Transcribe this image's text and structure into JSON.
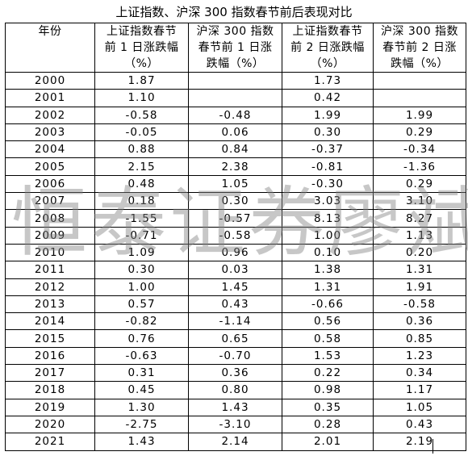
{
  "title": "上证指数、沪深 300 指数春节前后表现对比",
  "headers": [
    [
      "年份"
    ],
    [
      "上证指数春节",
      "前 1 日涨跌幅",
      "（%）"
    ],
    [
      "沪深 300 指数",
      "春节前 1 日涨",
      "跌幅（%）"
    ],
    [
      "上证指数春节",
      "前 2 日涨跌幅",
      "（%）"
    ],
    [
      "沪深 300 指数",
      "春节前 2 日涨",
      "跌幅（%）"
    ]
  ],
  "rows": [
    [
      "2000",
      "1.87",
      "",
      "1.73",
      ""
    ],
    [
      "2001",
      "1.10",
      "",
      "0.42",
      ""
    ],
    [
      "2002",
      "-0.58",
      "-0.48",
      "1.99",
      "1.99"
    ],
    [
      "2003",
      "-0.05",
      "0.06",
      "0.30",
      "0.29"
    ],
    [
      "2004",
      "0.88",
      "0.84",
      "-0.37",
      "-0.34"
    ],
    [
      "2005",
      "2.15",
      "2.38",
      "-0.81",
      "-1.36"
    ],
    [
      "2006",
      "0.48",
      "1.05",
      "-0.30",
      "0.29"
    ],
    [
      "2007",
      "0.18",
      "0.30",
      "3.03",
      "3.10"
    ],
    [
      "2008",
      "-1.55",
      "-0.57",
      "8.13",
      "8.27"
    ],
    [
      "2009",
      "-0.71",
      "-0.58",
      "1.00",
      "1.13"
    ],
    [
      "2010",
      "1.09",
      "0.96",
      "0.10",
      "0.20"
    ],
    [
      "2011",
      "0.30",
      "0.03",
      "1.38",
      "1.31"
    ],
    [
      "2012",
      "1.00",
      "1.45",
      "1.31",
      "1.91"
    ],
    [
      "2013",
      "0.57",
      "0.43",
      "-0.66",
      "-0.58"
    ],
    [
      "2014",
      "-0.82",
      "-1.14",
      "0.56",
      "0.36"
    ],
    [
      "2015",
      "0.76",
      "0.65",
      "0.58",
      "0.85"
    ],
    [
      "2016",
      "-0.63",
      "-0.70",
      "1.53",
      "1.23"
    ],
    [
      "2017",
      "0.31",
      "0.36",
      "0.22",
      "0.34"
    ],
    [
      "2018",
      "0.45",
      "0.80",
      "0.98",
      "1.17"
    ],
    [
      "2019",
      "1.30",
      "1.43",
      "0.35",
      "1.05"
    ],
    [
      "2020",
      "-2.75",
      "-3.10",
      "0.28",
      "0.43"
    ],
    [
      "2021",
      "1.43",
      "2.14",
      "2.01",
      "2.19"
    ]
  ],
  "watermark": "恒泰证券廖斌"
}
